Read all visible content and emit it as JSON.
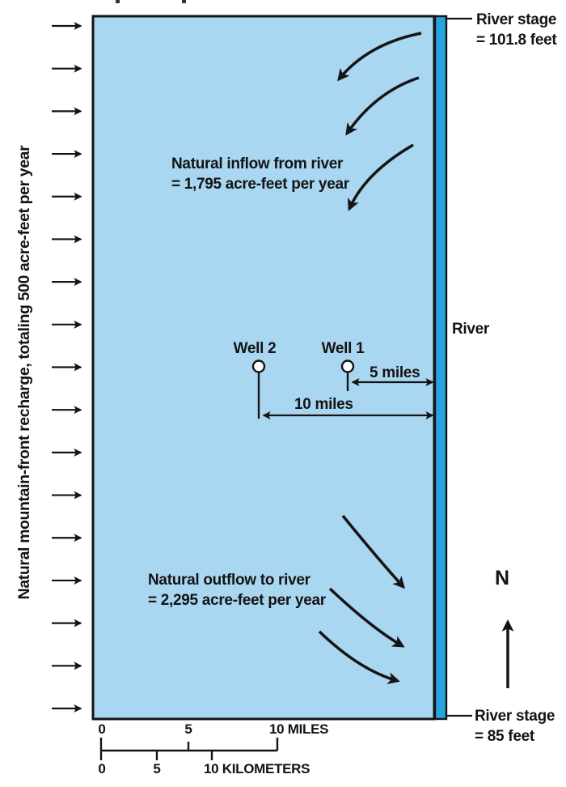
{
  "colors": {
    "ink": "#141414",
    "aquifer_fill": "#a9d6f0",
    "river_fill": "#29a3dd"
  },
  "recharge": {
    "label": "Natural mountain-front recharge, totaling 500 acre-feet per year",
    "arrow_count": 17
  },
  "inflow": {
    "line1": "Natural inflow from river",
    "line2": "= 1,795 acre-feet per year"
  },
  "outflow": {
    "line1": "Natural outflow to river",
    "line2": "= 2,295 acre-feet per year"
  },
  "wells": {
    "well2_label": "Well 2",
    "well1_label": "Well 1"
  },
  "distances": {
    "well1_to_river": "5 miles",
    "well2_to_river": "10 miles"
  },
  "river": {
    "label": "River",
    "stage_top_line1": "River stage",
    "stage_top_line2": "= 101.8 feet",
    "stage_bottom_line1": "River stage",
    "stage_bottom_line2": "= 85 feet"
  },
  "north": {
    "label": "N"
  },
  "scale": {
    "miles": {
      "t0": "0",
      "t5": "5",
      "t10": "10 MILES"
    },
    "kilometers": {
      "t0": "0",
      "t5": "5",
      "t10": "10 KILOMETERS"
    }
  }
}
